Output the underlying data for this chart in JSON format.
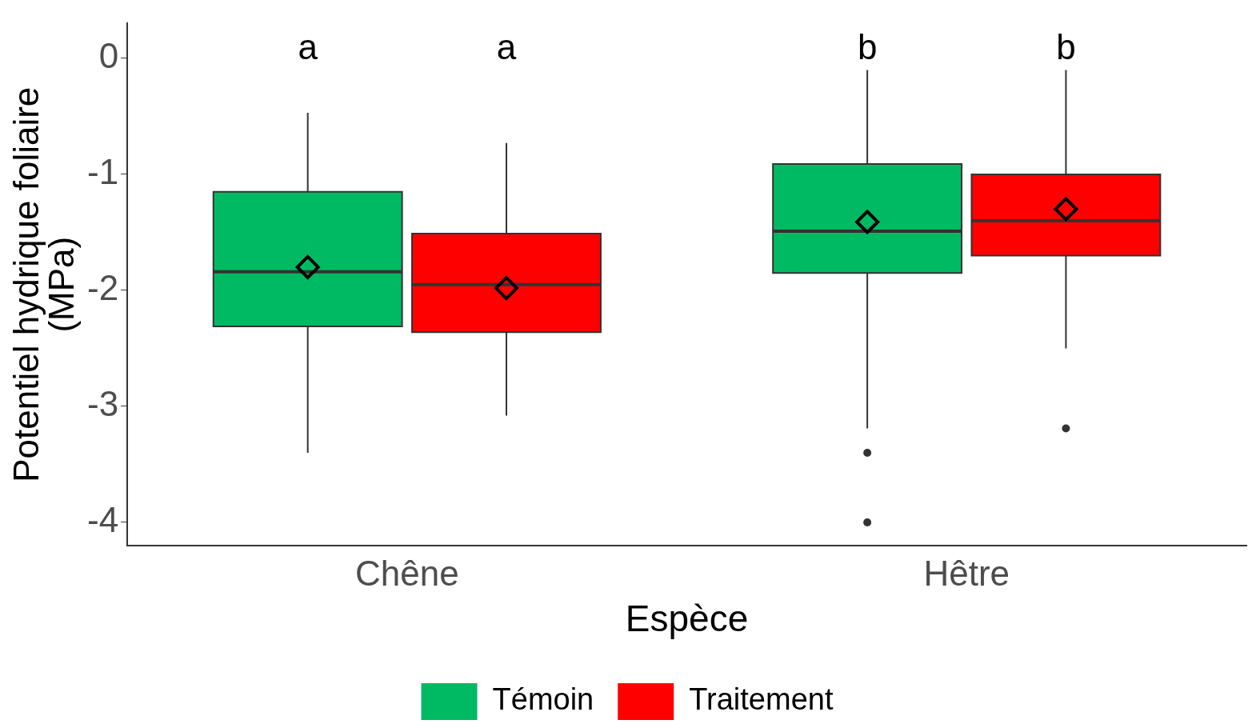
{
  "chart_data": {
    "type": "box",
    "xlabel": "Espèce",
    "ylabel": "Potentiel hydrique foliaire\n(MPa)",
    "categories": [
      "Chêne",
      "Hêtre"
    ],
    "ylim": [
      -4.2,
      0.3
    ],
    "yticks": [
      -4,
      -3,
      -2,
      -1,
      0
    ],
    "grid": false,
    "legend": "bottom",
    "marker": "diamond",
    "annotations": [
      "a",
      "a",
      "b",
      "b"
    ],
    "series": [
      {
        "name": "Témoin",
        "color": "#00ba63",
        "boxes": [
          {
            "low": -3.4,
            "q1": -2.31,
            "median": -1.84,
            "q3": -1.15,
            "high": -0.47,
            "mean": -1.8
          },
          {
            "low": -3.19,
            "q1": -1.85,
            "median": -1.49,
            "q3": -0.91,
            "high": -0.1,
            "mean": -1.41,
            "outliers": [
              -3.4,
              -4.0
            ]
          }
        ]
      },
      {
        "name": "Traitement",
        "color": "#ff0000",
        "boxes": [
          {
            "low": -3.08,
            "q1": -2.36,
            "median": -1.95,
            "q3": -1.51,
            "high": -0.73,
            "mean": -1.98
          },
          {
            "low": -2.5,
            "q1": -1.7,
            "median": -1.4,
            "q3": -1.0,
            "high": -0.1,
            "mean": -1.3,
            "outliers": [
              -3.19
            ]
          }
        ]
      }
    ]
  }
}
